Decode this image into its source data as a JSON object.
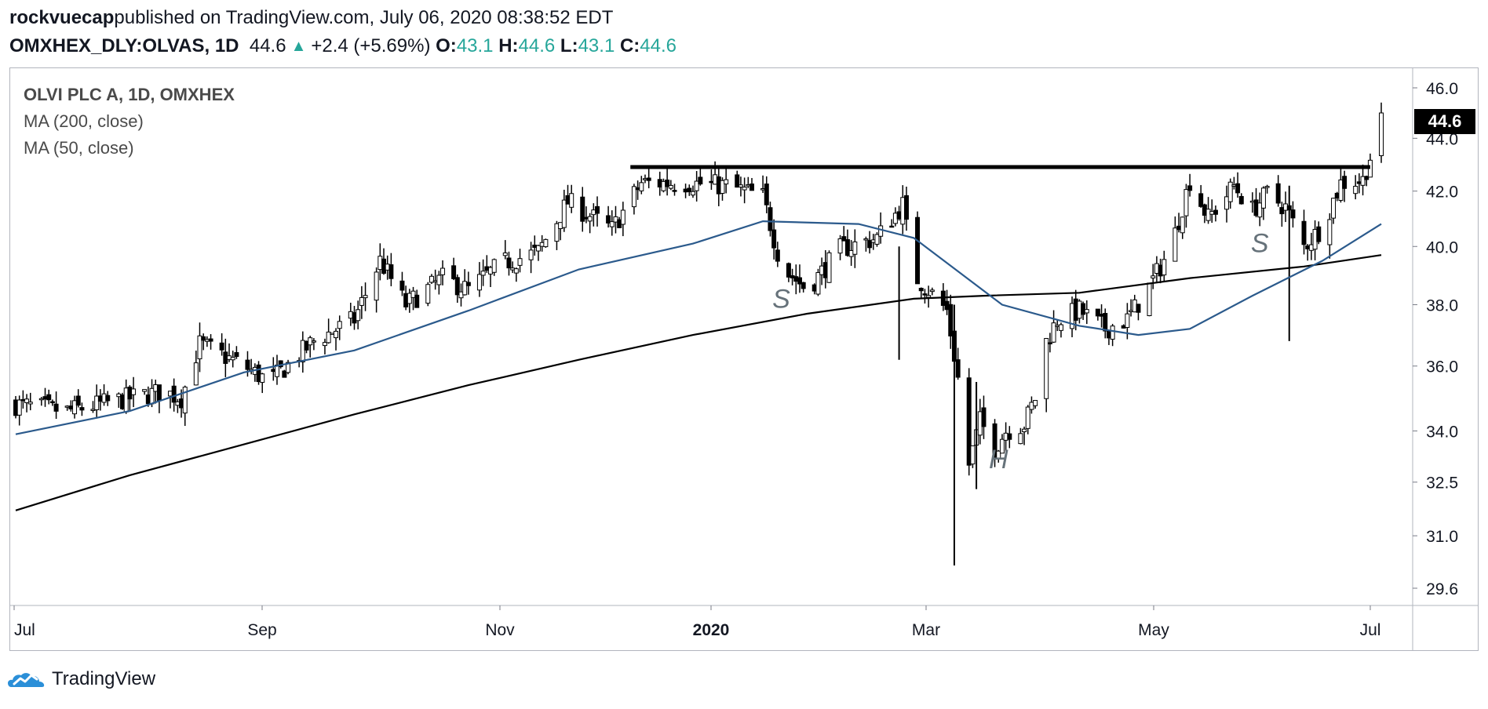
{
  "header": {
    "author": "rockvuecap",
    "published": " published on TradingView.com, July 06, 2020 08:38:52 EDT",
    "symbol": "OMXHEX_DLY:OLVAS, 1D",
    "last": "44.6",
    "change": "+2.4 (+5.69%)",
    "o_label": "O:",
    "o_value": "43.1",
    "h_label": "H:",
    "h_value": "44.6",
    "l_label": "L:",
    "l_value": "43.1",
    "c_label": "C:",
    "c_value": "44.6"
  },
  "legend": {
    "title": "OLVI PLC A, 1D, OMXHEX",
    "ma200": "MA (200, close)",
    "ma50": "MA (50, close)"
  },
  "price_tag": "44.6",
  "footer": {
    "brand": "TradingView"
  },
  "colors": {
    "up": "#26a69a",
    "candle": "#000000",
    "ma50": "#2b5a8c",
    "ma200": "#000000",
    "annotation": "#66727a"
  },
  "chart_data": {
    "type": "candlestick",
    "y_axis_ticks": [
      "46.0",
      "44.0",
      "42.0",
      "40.0",
      "38.0",
      "36.0",
      "34.0",
      "32.5",
      "31.0",
      "29.6"
    ],
    "y_scale": "log",
    "ylim": [
      29.6,
      46.0
    ],
    "x_axis_ticks": [
      {
        "label": "Jul",
        "bold": false
      },
      {
        "label": "Sep",
        "bold": false
      },
      {
        "label": "Nov",
        "bold": false
      },
      {
        "label": "2020",
        "bold": true
      },
      {
        "label": "Mar",
        "bold": false
      },
      {
        "label": "May",
        "bold": false
      },
      {
        "label": "Jul",
        "bold": false
      }
    ],
    "x_range": [
      "2019-07-01",
      "2020-07-06"
    ],
    "close_path": [
      [
        "2019-07-01",
        34.8
      ],
      [
        "2019-07-15",
        34.6
      ],
      [
        "2019-08-01",
        35.0
      ],
      [
        "2019-08-10",
        35.2
      ],
      [
        "2019-08-15",
        35.0
      ],
      [
        "2019-08-20",
        36.7
      ],
      [
        "2019-09-01",
        36.0
      ],
      [
        "2019-09-08",
        35.5
      ],
      [
        "2019-09-20",
        36.8
      ],
      [
        "2019-10-01",
        37.5
      ],
      [
        "2019-10-08",
        39.5
      ],
      [
        "2019-10-15",
        38.0
      ],
      [
        "2019-10-25",
        38.9
      ],
      [
        "2019-11-01",
        38.5
      ],
      [
        "2019-11-10",
        39.4
      ],
      [
        "2019-11-20",
        39.8
      ],
      [
        "2019-11-28",
        41.6
      ],
      [
        "2019-12-10",
        40.6
      ],
      [
        "2019-12-18",
        42.3
      ],
      [
        "2019-12-31",
        42.3
      ],
      [
        "2020-01-10",
        42.2
      ],
      [
        "2020-01-20",
        41.8
      ],
      [
        "2020-01-25",
        39.3
      ],
      [
        "2020-02-01",
        38.5
      ],
      [
        "2020-02-10",
        39.9
      ],
      [
        "2020-02-20",
        40.3
      ],
      [
        "2020-02-27",
        41.5
      ],
      [
        "2020-03-01",
        39.0
      ],
      [
        "2020-03-05",
        38.5
      ],
      [
        "2020-03-10",
        37.8
      ],
      [
        "2020-03-13",
        35.6
      ],
      [
        "2020-03-16",
        33.0
      ],
      [
        "2020-03-19",
        34.3
      ],
      [
        "2020-03-23",
        33.5
      ],
      [
        "2020-03-26",
        34.0
      ],
      [
        "2020-03-31",
        34.2
      ],
      [
        "2020-04-03",
        35.0
      ],
      [
        "2020-04-06",
        36.8
      ],
      [
        "2020-04-09",
        37.5
      ],
      [
        "2020-04-15",
        37.8
      ],
      [
        "2020-04-22",
        37.2
      ],
      [
        "2020-04-28",
        37.5
      ],
      [
        "2020-05-04",
        38.6
      ],
      [
        "2020-05-10",
        40.0
      ],
      [
        "2020-05-15",
        42.4
      ],
      [
        "2020-05-20",
        41.0
      ],
      [
        "2020-05-27",
        42.2
      ],
      [
        "2020-06-01",
        41.3
      ],
      [
        "2020-06-05",
        41.9
      ],
      [
        "2020-06-10",
        41.4
      ],
      [
        "2020-06-15",
        40.0
      ],
      [
        "2020-06-20",
        40.7
      ],
      [
        "2020-06-25",
        42.3
      ],
      [
        "2020-07-01",
        42.4
      ],
      [
        "2020-07-06",
        44.6
      ]
    ],
    "spikes": [
      {
        "date": "2020-03-12",
        "high": 38.0,
        "low": 30.2
      },
      {
        "date": "2020-03-18",
        "high": 35.5,
        "low": 32.3
      },
      {
        "date": "2020-02-26",
        "high": 40.0,
        "low": 36.2
      },
      {
        "date": "2020-06-11",
        "high": 42.2,
        "low": 36.8
      }
    ],
    "ma50": [
      [
        "2019-07-01",
        33.9
      ],
      [
        "2019-08-01",
        34.6
      ],
      [
        "2019-09-01",
        35.8
      ],
      [
        "2019-10-01",
        36.5
      ],
      [
        "2019-11-01",
        37.8
      ],
      [
        "2019-12-01",
        39.2
      ],
      [
        "2020-01-01",
        40.1
      ],
      [
        "2020-01-20",
        40.9
      ],
      [
        "2020-02-15",
        40.8
      ],
      [
        "2020-03-01",
        40.3
      ],
      [
        "2020-03-25",
        38.0
      ],
      [
        "2020-04-15",
        37.3
      ],
      [
        "2020-05-01",
        37.0
      ],
      [
        "2020-05-15",
        37.2
      ],
      [
        "2020-06-01",
        38.3
      ],
      [
        "2020-06-20",
        39.5
      ],
      [
        "2020-07-06",
        40.8
      ]
    ],
    "ma200": [
      [
        "2019-07-01",
        31.7
      ],
      [
        "2019-08-01",
        32.7
      ],
      [
        "2019-09-01",
        33.6
      ],
      [
        "2019-10-01",
        34.5
      ],
      [
        "2019-11-01",
        35.4
      ],
      [
        "2019-12-01",
        36.2
      ],
      [
        "2020-01-01",
        37.0
      ],
      [
        "2020-02-01",
        37.7
      ],
      [
        "2020-03-01",
        38.2
      ],
      [
        "2020-03-20",
        38.3
      ],
      [
        "2020-04-15",
        38.4
      ],
      [
        "2020-05-15",
        38.9
      ],
      [
        "2020-06-15",
        39.3
      ],
      [
        "2020-07-06",
        39.7
      ]
    ],
    "resistance_line": {
      "from": "2019-12-15",
      "to": "2020-07-03",
      "value": 42.9
    },
    "annotations": [
      {
        "text": "S",
        "date": "2020-01-25",
        "value": 37.9
      },
      {
        "text": "H",
        "date": "2020-03-24",
        "value": 32.9
      },
      {
        "text": "S",
        "date": "2020-06-03",
        "value": 39.8
      }
    ]
  }
}
